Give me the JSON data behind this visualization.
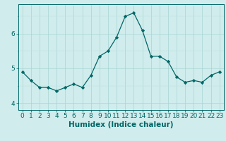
{
  "title": "",
  "xlabel": "Humidex (Indice chaleur)",
  "ylabel": "",
  "x_values": [
    0,
    1,
    2,
    3,
    4,
    5,
    6,
    7,
    8,
    9,
    10,
    11,
    12,
    13,
    14,
    15,
    16,
    17,
    18,
    19,
    20,
    21,
    22,
    23
  ],
  "y_values": [
    4.9,
    4.65,
    4.45,
    4.45,
    4.35,
    4.45,
    4.55,
    4.45,
    4.8,
    5.35,
    5.5,
    5.9,
    6.5,
    6.6,
    6.1,
    5.35,
    5.35,
    5.2,
    4.75,
    4.6,
    4.65,
    4.6,
    4.8,
    4.9
  ],
  "line_color": "#006666",
  "marker_color": "#006666",
  "bg_color": "#d0ecec",
  "grid_color_major": "#a8d4d4",
  "grid_color_minor": "#bce0e0",
  "ylim": [
    3.8,
    6.85
  ],
  "yticks": [
    4,
    5,
    6
  ],
  "xlim": [
    -0.5,
    23.5
  ],
  "axis_fontsize": 7,
  "tick_fontsize": 6.5,
  "xlabel_fontsize": 7.5
}
